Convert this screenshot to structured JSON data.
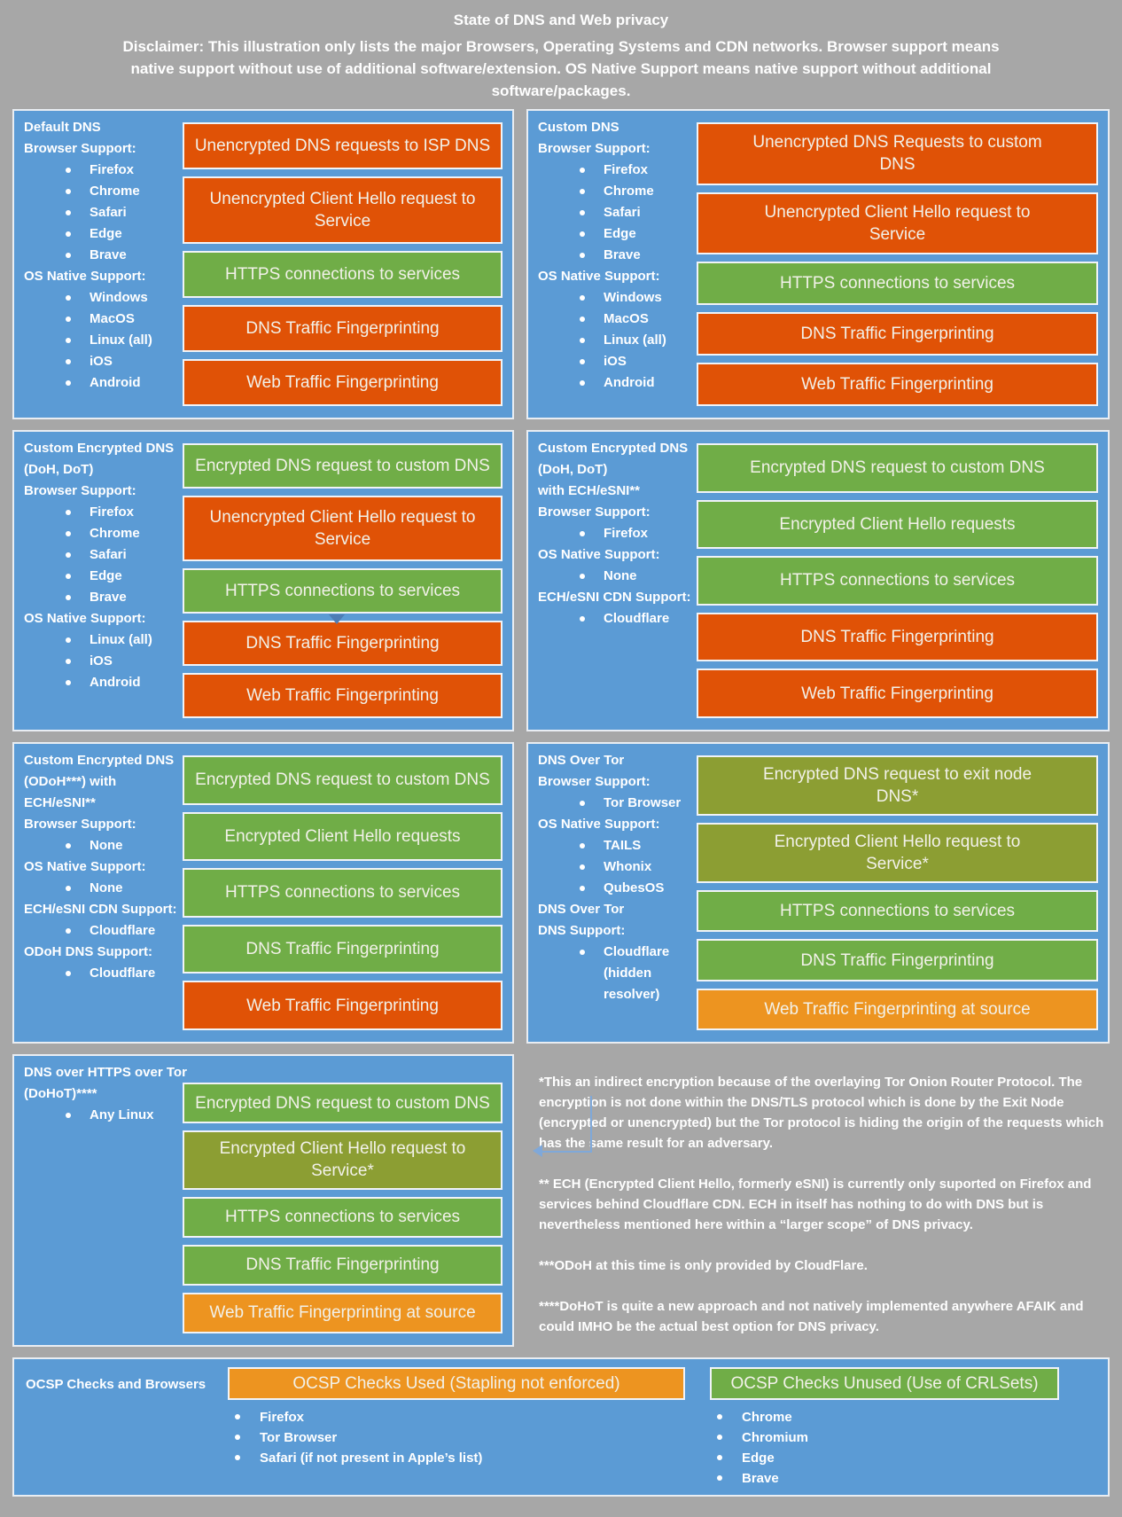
{
  "colors": {
    "background": "#A7A7A7",
    "panel_blue": "#5B9BD5",
    "status_bad": "#E05206",
    "status_good": "#70AD47",
    "status_indirect": "#8C9E33",
    "status_partial": "#ED9420"
  },
  "header": {
    "title": "State of DNS and Web privacy",
    "disclaimer": "Disclaimer: This illustration only lists the major Browsers, Operating Systems and CDN networks. Browser support means native support without use of additional software/extension. OS Native Support means native support without additional software/packages."
  },
  "panels": [
    {
      "id": "default-dns",
      "lines": [
        {
          "t": "h",
          "text": "Default DNS"
        },
        {
          "t": "h",
          "text": "Browser Support:"
        },
        {
          "t": "b",
          "text": "Firefox"
        },
        {
          "t": "b",
          "text": "Chrome"
        },
        {
          "t": "b",
          "text": "Safari"
        },
        {
          "t": "b",
          "text": "Edge"
        },
        {
          "t": "b",
          "text": "Brave"
        },
        {
          "t": "h",
          "text": "OS Native Support:"
        },
        {
          "t": "b",
          "text": "Windows"
        },
        {
          "t": "b",
          "text": "MacOS"
        },
        {
          "t": "b",
          "text": "Linux (all)"
        },
        {
          "t": "b",
          "text": "iOS"
        },
        {
          "t": "b",
          "text": "Android"
        }
      ],
      "bars": [
        {
          "label": "Unencrypted DNS requests to ISP DNS",
          "status": "bad"
        },
        {
          "label": [
            "Unencrypted Client Hello request to",
            "Service"
          ],
          "status": "bad",
          "span": "two"
        },
        {
          "label": "HTTPS connections to services",
          "status": "good"
        },
        {
          "label": "DNS Traffic Fingerprinting",
          "status": "bad"
        },
        {
          "label": "Web Traffic Fingerprinting",
          "status": "bad"
        }
      ]
    },
    {
      "id": "custom-dns",
      "lines": [
        {
          "t": "h",
          "text": "Custom DNS"
        },
        {
          "t": "h",
          "text": "Browser Support:"
        },
        {
          "t": "b",
          "text": "Firefox"
        },
        {
          "t": "b",
          "text": "Chrome"
        },
        {
          "t": "b",
          "text": "Safari"
        },
        {
          "t": "b",
          "text": "Edge"
        },
        {
          "t": "b",
          "text": "Brave"
        },
        {
          "t": "h",
          "text": "OS Native Support:"
        },
        {
          "t": "b",
          "text": "Windows"
        },
        {
          "t": "b",
          "text": "MacOS"
        },
        {
          "t": "b",
          "text": "Linux (all)"
        },
        {
          "t": "b",
          "text": "iOS"
        },
        {
          "t": "b",
          "text": "Android"
        }
      ],
      "bars": [
        {
          "label": [
            "Unencrypted DNS Requests to custom",
            "DNS"
          ],
          "status": "bad",
          "span": "two"
        },
        {
          "label": [
            "Unencrypted Client Hello request to",
            "Service"
          ],
          "status": "bad",
          "span": "two"
        },
        {
          "label": "HTTPS connections to services",
          "status": "good"
        },
        {
          "label": "DNS Traffic Fingerprinting",
          "status": "bad"
        },
        {
          "label": "Web Traffic Fingerprinting",
          "status": "bad"
        }
      ]
    },
    {
      "id": "custom-encrypted-dns-doh-dot",
      "lines": [
        {
          "t": "h",
          "text": "Custom Encrypted DNS"
        },
        {
          "t": "h",
          "text": "(DoH, DoT)"
        },
        {
          "t": "h",
          "text": "Browser Support:"
        },
        {
          "t": "b",
          "text": "Firefox"
        },
        {
          "t": "b",
          "text": "Chrome"
        },
        {
          "t": "b",
          "text": "Safari"
        },
        {
          "t": "b",
          "text": "Edge"
        },
        {
          "t": "b",
          "text": "Brave"
        },
        {
          "t": "h",
          "text": "OS Native Support:"
        },
        {
          "t": "b",
          "text": "Linux (all)"
        },
        {
          "t": "b",
          "text": "iOS"
        },
        {
          "t": "b",
          "text": "Android"
        }
      ],
      "bars": [
        {
          "label": "Encrypted DNS request to custom DNS",
          "status": "good"
        },
        {
          "label": [
            "Unencrypted Client Hello request to",
            "Service"
          ],
          "status": "bad",
          "span": "two"
        },
        {
          "label": "HTTPS connections to services",
          "status": "good"
        },
        {
          "label": "DNS Traffic Fingerprinting",
          "status": "bad"
        },
        {
          "label": "Web Traffic Fingerprinting",
          "status": "bad"
        }
      ]
    },
    {
      "id": "custom-encrypted-dns-ech-esni",
      "lines": [
        {
          "t": "h",
          "text": "Custom Encrypted DNS"
        },
        {
          "t": "h",
          "text": "(DoH, DoT)"
        },
        {
          "t": "h",
          "text": "with ECH/eSNI**"
        },
        {
          "t": "h",
          "text": "Browser Support:"
        },
        {
          "t": "b",
          "text": "Firefox"
        },
        {
          "t": "h",
          "text": "OS Native Support:"
        },
        {
          "t": "b",
          "text": "None"
        },
        {
          "t": "h",
          "text": "ECH/eSNI CDN Support:"
        },
        {
          "t": "b",
          "text": "Cloudflare"
        }
      ],
      "bars": [
        {
          "label": "Encrypted DNS request to custom DNS",
          "status": "good"
        },
        {
          "label": "Encrypted Client Hello requests",
          "status": "good"
        },
        {
          "label": "HTTPS connections to services",
          "status": "good"
        },
        {
          "label": "DNS Traffic Fingerprinting",
          "status": "bad"
        },
        {
          "label": "Web Traffic Fingerprinting",
          "status": "bad"
        }
      ]
    },
    {
      "id": "custom-encrypted-dns-odoh",
      "lines": [
        {
          "t": "h",
          "text": "Custom Encrypted DNS"
        },
        {
          "t": "h",
          "text": "(ODoH***) with"
        },
        {
          "t": "h",
          "text": "ECH/eSNI**"
        },
        {
          "t": "h",
          "text": "Browser Support:"
        },
        {
          "t": "b",
          "text": "None"
        },
        {
          "t": "h",
          "text": "OS Native Support:"
        },
        {
          "t": "b",
          "text": "None"
        },
        {
          "t": "h",
          "text": "ECH/eSNI CDN Support:"
        },
        {
          "t": "b",
          "text": "Cloudflare"
        },
        {
          "t": "h",
          "text": "ODoH DNS Support:"
        },
        {
          "t": "b",
          "text": "Cloudflare"
        }
      ],
      "bars": [
        {
          "label": "Encrypted DNS request to custom DNS",
          "status": "good"
        },
        {
          "label": "Encrypted Client Hello requests",
          "status": "good"
        },
        {
          "label": "HTTPS connections to services",
          "status": "good"
        },
        {
          "label": "DNS Traffic Fingerprinting",
          "status": "good"
        },
        {
          "label": "Web Traffic Fingerprinting",
          "status": "bad"
        }
      ]
    },
    {
      "id": "dns-over-tor",
      "lines": [
        {
          "t": "h",
          "text": "DNS Over Tor"
        },
        {
          "t": "h",
          "text": "Browser Support:"
        },
        {
          "t": "b",
          "text": "Tor Browser"
        },
        {
          "t": "h",
          "text": "OS Native Support:"
        },
        {
          "t": "b",
          "text": "TAILS"
        },
        {
          "t": "b",
          "text": "Whonix"
        },
        {
          "t": "b",
          "text": "QubesOS"
        },
        {
          "t": "h",
          "text": "DNS Over Tor"
        },
        {
          "t": "h",
          "text": "DNS Support:"
        },
        {
          "t": "b",
          "text": "Cloudflare"
        },
        {
          "t": "s",
          "text": "(hidden resolver)"
        }
      ],
      "bars": [
        {
          "label": [
            "Encrypted DNS request to exit node",
            "DNS*"
          ],
          "status": "indirect",
          "span": "two"
        },
        {
          "label": [
            "Encrypted Client Hello request to",
            "Service*"
          ],
          "status": "indirect",
          "span": "two"
        },
        {
          "label": "HTTPS connections to services",
          "status": "good"
        },
        {
          "label": "DNS Traffic Fingerprinting",
          "status": "good"
        },
        {
          "label": "Web Traffic Fingerprinting at source",
          "status": "partial"
        }
      ]
    },
    {
      "id": "dohot",
      "lines": [
        {
          "t": "h",
          "text": "DNS over HTTPS over Tor"
        },
        {
          "t": "h",
          "text": "(DoHoT)****"
        },
        {
          "t": "b",
          "text": "Any Linux"
        }
      ],
      "bars": [
        {
          "label": "Encrypted DNS request to custom DNS",
          "status": "good"
        },
        {
          "label": [
            "Encrypted Client Hello request to",
            "Service*"
          ],
          "status": "indirect",
          "span": "two"
        },
        {
          "label": "HTTPS connections to services",
          "status": "good"
        },
        {
          "label": "DNS Traffic Fingerprinting",
          "status": "good"
        },
        {
          "label": "Web Traffic Fingerprinting at source",
          "status": "partial"
        }
      ]
    }
  ],
  "notes": [
    "*This an indirect encryption because of the overlaying Tor Onion Router Protocol. The encryption is not done within the DNS/TLS protocol which is done by the Exit Node (encrypted or unencrypted) but the Tor protocol is hiding the origin of the requests which has the same result for an adversary.",
    "** ECH (Encrypted Client Hello, formerly eSNI) is currently only suported on Firefox and services behind Cloudflare CDN. ECH in itself has nothing to do with DNS but is nevertheless mentioned here within a “larger scope” of DNS privacy.",
    "***ODoH at this time is only provided by CloudFlare.",
    "****DoHoT is quite a new approach and not natively implemented anywhere AFAIK and could IMHO be the actual best option for DNS privacy."
  ],
  "ocsp": {
    "title": "OCSP Checks and Browsers",
    "used": {
      "label": "OCSP Checks Used (Stapling not enforced)",
      "status": "partial",
      "items": [
        "Firefox",
        "Tor Browser",
        "Safari (if not present in Apple’s list)"
      ]
    },
    "unused": {
      "label": "OCSP Checks Unused (Use of CRLSets)",
      "status": "good",
      "items": [
        "Chrome",
        "Chromium",
        "Edge",
        "Brave"
      ]
    }
  }
}
